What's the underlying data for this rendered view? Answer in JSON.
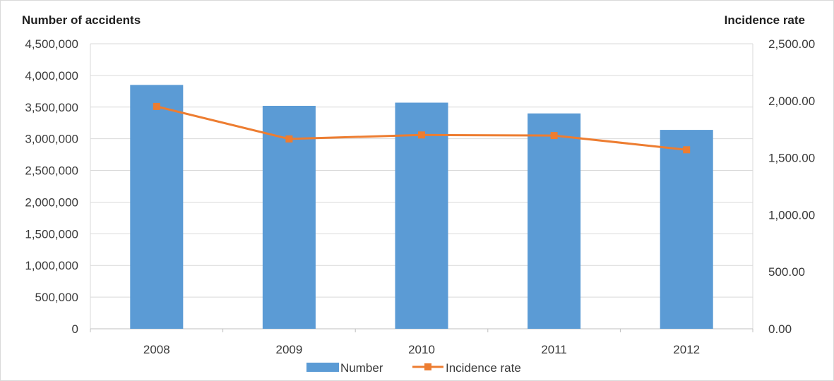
{
  "chart_data": {
    "type": "bar",
    "categories": [
      "2008",
      "2009",
      "2010",
      "2011",
      "2012"
    ],
    "series": [
      {
        "name": "Number",
        "type": "bar",
        "axis": "left",
        "color": "#5b9bd5",
        "values": [
          3850000,
          3520000,
          3570000,
          3400000,
          3140000
        ]
      },
      {
        "name": "Incidence rate",
        "type": "line",
        "axis": "right",
        "color": "#ed7d31",
        "values": [
          1950.0,
          1665.0,
          1700.0,
          1695.0,
          1570.0
        ]
      }
    ],
    "ylabel": "Number of accidents",
    "y2label": "Incidence rate",
    "ylim": [
      0,
      4500000
    ],
    "y2lim": [
      0,
      2500
    ],
    "yticks": [
      "0",
      "500,000",
      "1,000,000",
      "1,500,000",
      "2,000,000",
      "2,500,000",
      "3,000,000",
      "3,500,000",
      "4,000,000",
      "4,500,000"
    ],
    "y2ticks": [
      "0.00",
      "500.00",
      "1,000.00",
      "1,500.00",
      "2,000.00",
      "2,500.00"
    ],
    "grid": true,
    "legend": "bottom"
  }
}
